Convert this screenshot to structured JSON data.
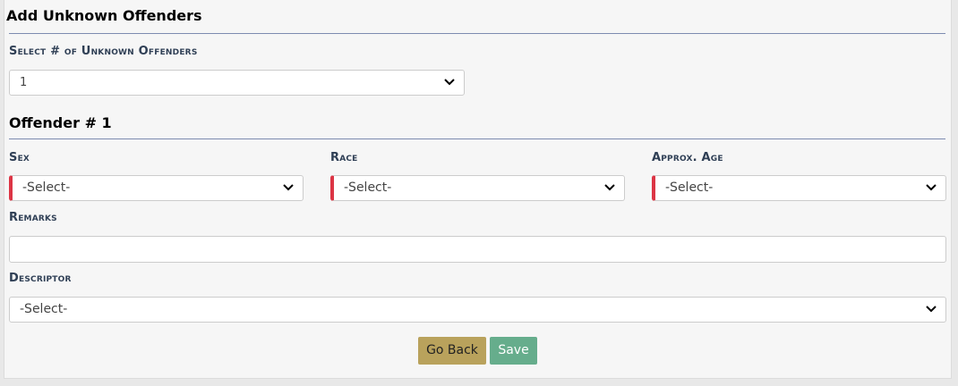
{
  "title": "Add Unknown Offenders",
  "count_field": {
    "label": "Select # of Unknown Offenders",
    "value": "1"
  },
  "offender_heading": "Offender # 1",
  "fields": {
    "sex": {
      "label": "Sex",
      "value": "-Select-",
      "required": true
    },
    "race": {
      "label": "Race",
      "value": "-Select-",
      "required": true
    },
    "age": {
      "label": "Approx. Age",
      "value": "-Select-",
      "required": true
    },
    "remarks": {
      "label": "Remarks",
      "value": ""
    },
    "descriptor": {
      "label": "Descriptor",
      "value": "-Select-"
    }
  },
  "buttons": {
    "go_back": "Go Back",
    "save": "Save"
  },
  "colors": {
    "required_marker": "#dc3545",
    "go_back": "#b9a25c",
    "save": "#66ad8c",
    "rule": "#7d8bb0"
  }
}
